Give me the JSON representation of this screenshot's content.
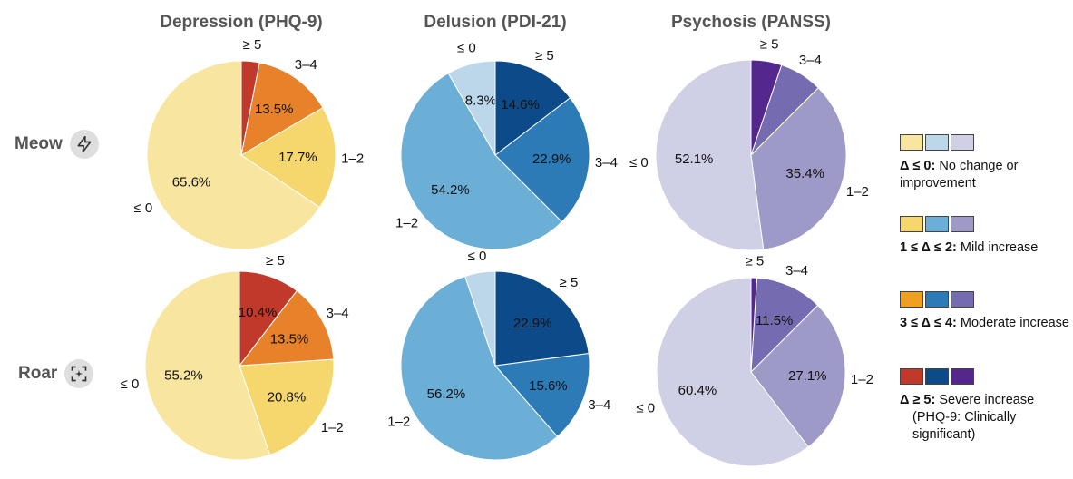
{
  "columns": [
    "Depression (PHQ-9)",
    "Delusion (PDI-21)",
    "Psychosis (PANSS)"
  ],
  "rows": [
    "Meow",
    "Roar"
  ],
  "icons": {
    "meow": "lightning-icon",
    "roar": "sparkle-frame-icon"
  },
  "chart_data": [
    {
      "type": "pie",
      "row": "Meow",
      "column": "Depression (PHQ-9)",
      "categories": [
        "≤ 0",
        "1–2",
        "3–4",
        "≥ 5"
      ],
      "values": [
        65.6,
        17.7,
        13.5,
        3.1
      ],
      "data_labels": [
        "65.6%",
        "17.7%",
        "13.5%",
        ""
      ],
      "colors": [
        "#f8e6a0",
        "#f5d76e",
        "#e8822a",
        "#c0392b"
      ]
    },
    {
      "type": "pie",
      "row": "Meow",
      "column": "Delusion (PDI-21)",
      "categories": [
        "≤ 0",
        "1–2",
        "3–4",
        "≥ 5"
      ],
      "values": [
        8.3,
        54.2,
        22.9,
        14.6
      ],
      "data_labels": [
        "8.3%",
        "54.2%",
        "22.9%",
        "14.6%"
      ],
      "colors": [
        "#bcd7ea",
        "#6baed6",
        "#2c7bb6",
        "#0d4a8a"
      ]
    },
    {
      "type": "pie",
      "row": "Meow",
      "column": "Psychosis (PANSS)",
      "categories": [
        "≤ 0",
        "1–2",
        "3–4",
        "≥ 5"
      ],
      "values": [
        52.1,
        35.4,
        7.3,
        5.2
      ],
      "data_labels": [
        "52.1%",
        "35.4%",
        "",
        ""
      ],
      "colors": [
        "#cfcfe6",
        "#9e9ac8",
        "#756bb1",
        "#54278f"
      ]
    },
    {
      "type": "pie",
      "row": "Roar",
      "column": "Depression (PHQ-9)",
      "categories": [
        "≤ 0",
        "1–2",
        "3–4",
        "≥ 5"
      ],
      "values": [
        55.2,
        20.8,
        13.5,
        10.4
      ],
      "data_labels": [
        "55.2%",
        "20.8%",
        "13.5%",
        "10.4%"
      ],
      "colors": [
        "#f8e6a0",
        "#f5d76e",
        "#e8822a",
        "#c0392b"
      ]
    },
    {
      "type": "pie",
      "row": "Roar",
      "column": "Delusion (PDI-21)",
      "categories": [
        "≤ 0",
        "1–2",
        "3–4",
        "≥ 5"
      ],
      "values": [
        5.2,
        56.2,
        15.6,
        22.9
      ],
      "data_labels": [
        "",
        "56.2%",
        "15.6%",
        "22.9%"
      ],
      "colors": [
        "#bcd7ea",
        "#6baed6",
        "#2c7bb6",
        "#0d4a8a"
      ]
    },
    {
      "type": "pie",
      "row": "Roar",
      "column": "Psychosis (PANSS)",
      "categories": [
        "≤ 0",
        "1–2",
        "3–4",
        "≥ 5"
      ],
      "values": [
        60.4,
        27.1,
        11.5,
        1.0
      ],
      "data_labels": [
        "60.4%",
        "27.1%",
        "11.5%",
        ""
      ],
      "colors": [
        "#cfcfe6",
        "#9e9ac8",
        "#756bb1",
        "#54278f"
      ]
    }
  ],
  "legend": [
    {
      "colors": [
        "#f8e6a0",
        "#bcd7ea",
        "#cfcfe6"
      ],
      "bold": "Δ ≤ 0:",
      "text": "No change or improvement",
      "extra": ""
    },
    {
      "colors": [
        "#f5d76e",
        "#6baed6",
        "#9e9ac8"
      ],
      "bold": "1 ≤ Δ ≤ 2:",
      "text": "Mild increase",
      "extra": ""
    },
    {
      "colors": [
        "#f0a020",
        "#2c7bb6",
        "#756bb1"
      ],
      "bold": "3 ≤ Δ ≤ 4:",
      "text": "Moderate increase",
      "extra": ""
    },
    {
      "colors": [
        "#c0392b",
        "#0d4a8a",
        "#54278f"
      ],
      "bold": "Δ ≥ 5:",
      "text": "Severe increase",
      "extra": "(PHQ-9: Clinically significant)"
    }
  ]
}
